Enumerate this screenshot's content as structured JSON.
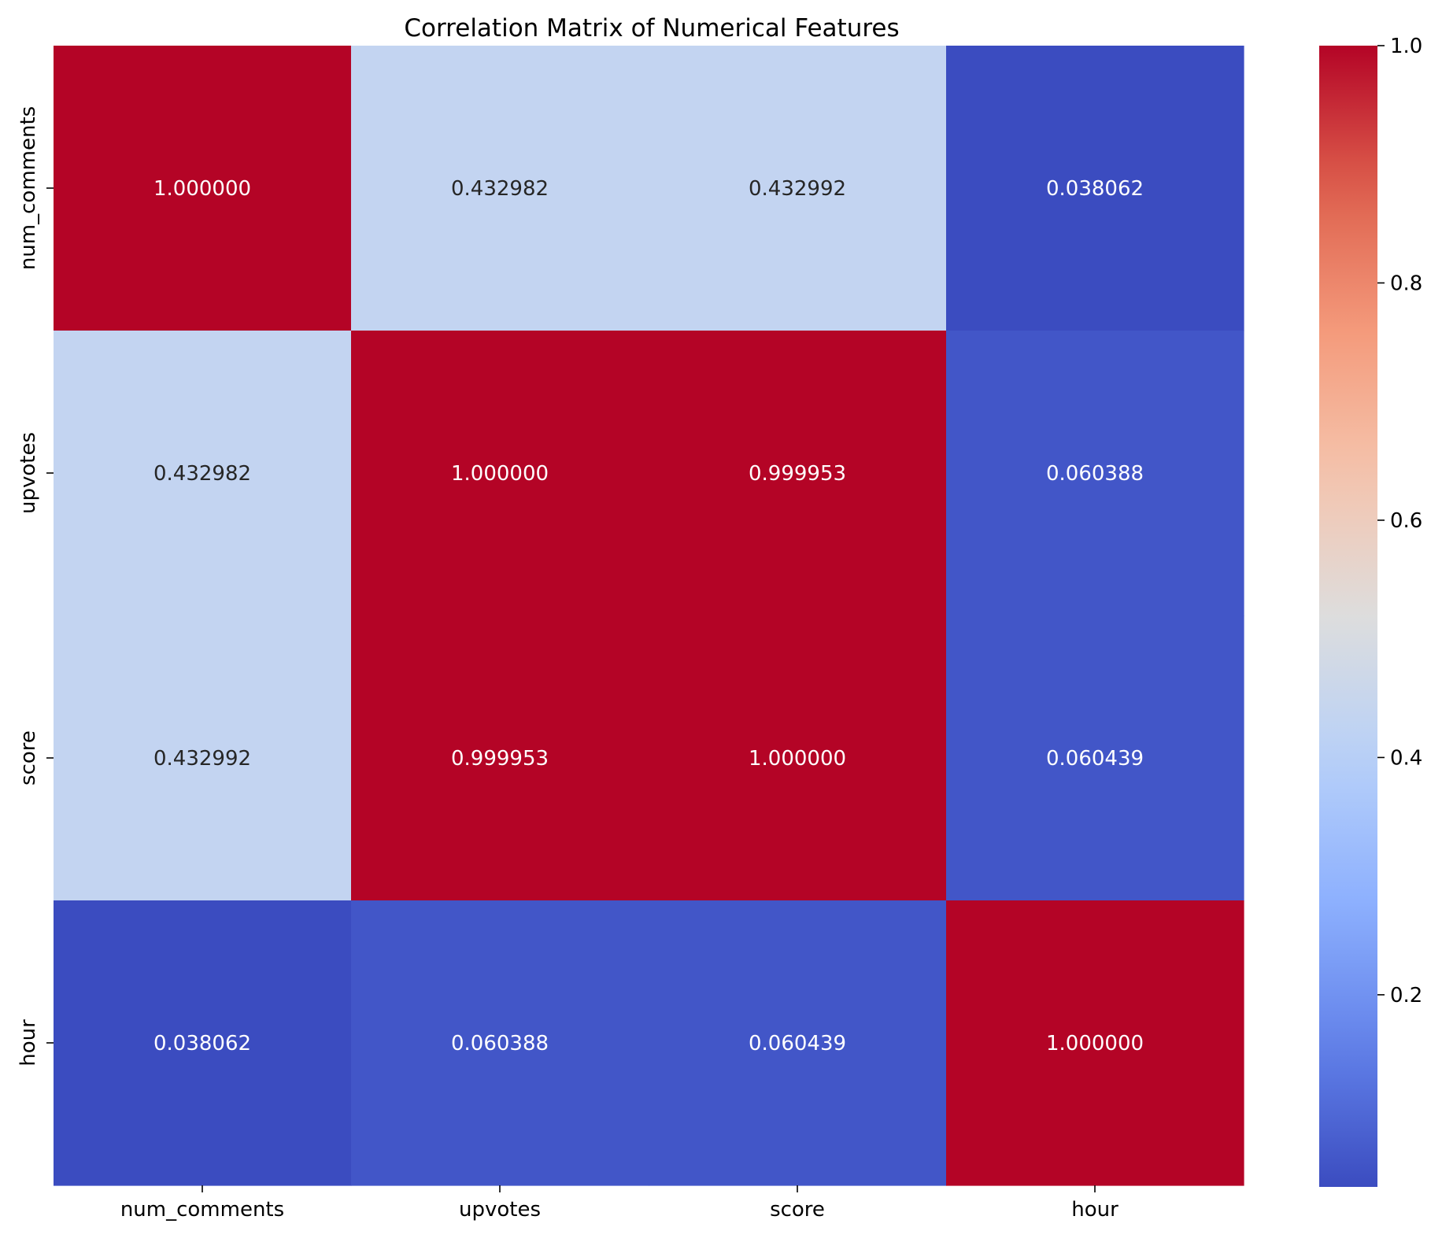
{
  "chart_data": {
    "type": "heatmap",
    "title": "Correlation Matrix of Numerical Features",
    "xlabel": "",
    "ylabel": "",
    "x_categories": [
      "num_comments",
      "upvotes",
      "score",
      "hour"
    ],
    "y_categories": [
      "num_comments",
      "upvotes",
      "score",
      "hour"
    ],
    "values": [
      [
        1.0,
        0.432982,
        0.432992,
        0.038062
      ],
      [
        0.432982,
        1.0,
        0.999953,
        0.060388
      ],
      [
        0.432992,
        0.999953,
        1.0,
        0.060439
      ],
      [
        0.038062,
        0.060388,
        0.060439,
        1.0
      ]
    ],
    "value_labels": [
      [
        "1.000000",
        "0.432982",
        "0.432992",
        "0.038062"
      ],
      [
        "0.432982",
        "1.000000",
        "0.999953",
        "0.060388"
      ],
      [
        "0.432992",
        "0.999953",
        "1.000000",
        "0.060439"
      ],
      [
        "0.038062",
        "0.060388",
        "0.060439",
        "1.000000"
      ]
    ],
    "colormap": "coolwarm",
    "color_range": [
      0.038062,
      1.0
    ],
    "colorbar_ticks": [
      0.2,
      0.4,
      0.6,
      0.8,
      1.0
    ],
    "colorbar_tick_labels": [
      "0.2",
      "0.4",
      "0.6",
      "0.8",
      "1.0"
    ],
    "grid": false,
    "legend": "colorbar-right"
  }
}
